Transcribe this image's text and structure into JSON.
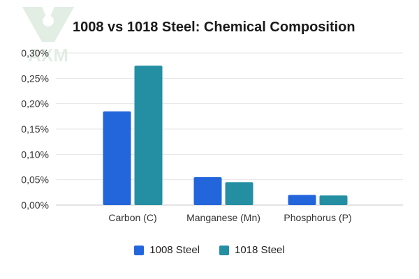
{
  "watermark": {
    "text": "AXM"
  },
  "chart_data": {
    "type": "bar",
    "title": "1008 vs 1018 Steel: Chemical Composition",
    "categories": [
      "Carbon (C)",
      "Manganese (Mn)",
      "Phosphorus (P)"
    ],
    "series": [
      {
        "name": "1008 Steel",
        "values": [
          0.185,
          0.055,
          0.02
        ],
        "color": "#2366dc"
      },
      {
        "name": "1018 Steel",
        "values": [
          0.275,
          0.045,
          0.019
        ],
        "color": "#248fa3"
      }
    ],
    "ylim": [
      0,
      0.3
    ],
    "yticks": [
      "0,00%",
      "0,05%",
      "0,10%",
      "0,15%",
      "0,20%",
      "0,25%",
      "0,30%"
    ],
    "grid": true,
    "legend_position": "bottom"
  }
}
